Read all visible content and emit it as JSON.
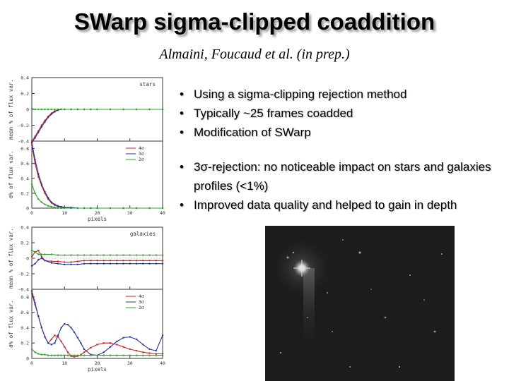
{
  "slide": {
    "title": "SWarp sigma-clipped coaddition",
    "subtitle": "Almaini, Foucaud et al. (in prep.)",
    "bullets_group1": [
      "Using a sigma-clipping rejection method",
      "Typically ~25 frames coadded",
      "Modification of SWarp"
    ],
    "bullets_group2": [
      "3σ-rejection: no noticeable impact on stars and galaxies profiles (<1%)",
      "Improved data quality and helped to gain in depth"
    ]
  },
  "plot_labels": {
    "stars": "stars",
    "galaxies": "galaxies",
    "ylabel_mean": "mean % of flux var.",
    "ylabel_sd": "σ% of flux var.",
    "xlabel": "pixels",
    "legend": [
      "4σ",
      "3σ",
      "2σ"
    ],
    "xticks": [
      "0",
      "10",
      "20",
      "30",
      "40"
    ],
    "yticks_mean": [
      "0.4",
      "0.2",
      "0",
      "-0.2",
      "-0.4"
    ],
    "yticks_sd": [
      "0.8",
      "0.6",
      "0.4",
      "0.2",
      "0"
    ]
  },
  "chart_data": [
    {
      "type": "line",
      "panel": "stars-mean",
      "label": "stars",
      "ylabel": "mean % of flux var.",
      "xlim": [
        0,
        40
      ],
      "ylim": [
        -0.4,
        0.4
      ],
      "x": [
        0,
        1,
        2,
        3,
        4,
        5,
        6,
        7,
        8,
        9,
        10,
        12,
        14,
        16,
        18,
        20,
        24,
        28,
        32,
        36,
        40
      ],
      "series": [
        {
          "name": "4σ",
          "color": "#cc2222",
          "values": [
            -0.4,
            -0.34,
            -0.27,
            -0.2,
            -0.14,
            -0.09,
            -0.05,
            -0.02,
            -0.01,
            0,
            0,
            0,
            0,
            0,
            0,
            0,
            0,
            0,
            0,
            0,
            0
          ]
        },
        {
          "name": "3σ",
          "color": "#2233aa",
          "values": [
            -0.42,
            -0.36,
            -0.29,
            -0.22,
            -0.16,
            -0.1,
            -0.06,
            -0.03,
            -0.01,
            0,
            0,
            0,
            0,
            0,
            0,
            0,
            0,
            0,
            0,
            0,
            0
          ]
        },
        {
          "name": "2σ",
          "color": "#22aa22",
          "values": [
            0.01,
            0,
            0,
            0,
            0,
            0,
            0,
            0,
            0,
            0,
            0,
            0,
            0,
            0,
            0,
            0,
            0,
            0,
            0,
            0,
            0
          ]
        }
      ]
    },
    {
      "type": "line",
      "panel": "stars-sd",
      "ylabel": "σ% of flux var.",
      "xlabel": "pixels",
      "xlim": [
        0,
        40
      ],
      "ylim": [
        0,
        0.9
      ],
      "x": [
        0,
        1,
        2,
        3,
        4,
        5,
        6,
        7,
        8,
        9,
        10,
        12,
        14,
        16,
        18,
        20,
        24,
        28,
        32,
        36,
        40
      ],
      "series": [
        {
          "name": "4σ",
          "color": "#cc2222",
          "values": [
            0.85,
            0.6,
            0.42,
            0.3,
            0.2,
            0.12,
            0.07,
            0.04,
            0.02,
            0.01,
            0.01,
            0,
            0,
            0,
            0,
            0,
            0,
            0,
            0,
            0,
            0
          ]
        },
        {
          "name": "3σ",
          "color": "#2233aa",
          "values": [
            0.88,
            0.65,
            0.46,
            0.32,
            0.22,
            0.14,
            0.08,
            0.05,
            0.03,
            0.02,
            0.01,
            0.01,
            0,
            0,
            0,
            0,
            0,
            0,
            0,
            0,
            0
          ]
        },
        {
          "name": "2σ",
          "color": "#22aa22",
          "values": [
            0.32,
            0.2,
            0.12,
            0.08,
            0.05,
            0.03,
            0.02,
            0.01,
            0,
            0,
            0,
            0,
            0,
            0,
            0,
            0,
            0,
            0,
            0,
            0,
            0
          ]
        }
      ]
    },
    {
      "type": "line",
      "panel": "galaxies-mean",
      "label": "galaxies",
      "ylabel": "mean % of flux var.",
      "xlim": [
        0,
        40
      ],
      "ylim": [
        -0.4,
        0.4
      ],
      "x": [
        0,
        1,
        2,
        3,
        4,
        6,
        8,
        10,
        12,
        14,
        16,
        18,
        20,
        22,
        24,
        26,
        28,
        30,
        32,
        34,
        36,
        38,
        40
      ],
      "series": [
        {
          "name": "4σ",
          "color": "#cc2222",
          "values": [
            0.02,
            0.08,
            0.1,
            0.02,
            -0.03,
            -0.04,
            -0.04,
            -0.05,
            -0.05,
            -0.04,
            -0.03,
            -0.03,
            -0.03,
            -0.03,
            -0.03,
            -0.03,
            -0.03,
            -0.03,
            -0.03,
            -0.03,
            -0.03,
            -0.03,
            -0.03
          ]
        },
        {
          "name": "3σ",
          "color": "#2233aa",
          "values": [
            -0.1,
            -0.07,
            -0.02,
            0,
            -0.03,
            -0.06,
            -0.07,
            -0.08,
            -0.08,
            -0.08,
            -0.07,
            -0.07,
            -0.07,
            -0.07,
            -0.07,
            -0.07,
            -0.07,
            -0.07,
            -0.07,
            -0.07,
            -0.07,
            -0.07,
            -0.07
          ]
        },
        {
          "name": "2σ",
          "color": "#22aa22",
          "values": [
            0.1,
            0.08,
            0.05,
            0.05,
            0.05,
            0.05,
            0.04,
            0.04,
            0.04,
            0.04,
            0.04,
            0.04,
            0.04,
            0.04,
            0.04,
            0.04,
            0.04,
            0.04,
            0.04,
            0.04,
            0.04,
            0.04,
            0.04
          ]
        }
      ]
    },
    {
      "type": "line",
      "panel": "galaxies-sd",
      "ylabel": "σ% of flux var.",
      "xlabel": "pixels",
      "xlim": [
        0,
        40
      ],
      "ylim": [
        0,
        0.9
      ],
      "x": [
        0,
        1,
        2,
        3,
        4,
        5,
        6,
        7,
        8,
        9,
        10,
        11,
        12,
        13,
        14,
        15,
        16,
        18,
        20,
        22,
        24,
        26,
        28,
        30,
        32,
        34,
        36,
        38,
        40
      ],
      "series": [
        {
          "name": "4σ",
          "color": "#cc2222",
          "values": [
            0.85,
            0.7,
            0.55,
            0.4,
            0.28,
            0.2,
            0.25,
            0.3,
            0.28,
            0.22,
            0.15,
            0.08,
            0.03,
            0.02,
            0.03,
            0.05,
            0.08,
            0.14,
            0.18,
            0.2,
            0.2,
            0.18,
            0.15,
            0.12,
            0.1,
            0.08,
            0.07,
            0.06,
            0.06
          ]
        },
        {
          "name": "3σ",
          "color": "#2233aa",
          "values": [
            0.88,
            0.72,
            0.55,
            0.4,
            0.28,
            0.2,
            0.18,
            0.2,
            0.3,
            0.4,
            0.45,
            0.44,
            0.4,
            0.34,
            0.27,
            0.2,
            0.12,
            0.05,
            0.04,
            0.08,
            0.15,
            0.22,
            0.27,
            0.28,
            0.25,
            0.18,
            0.12,
            0.1,
            0.3
          ]
        },
        {
          "name": "2σ",
          "color": "#22aa22",
          "values": [
            0.12,
            0.08,
            0.06,
            0.05,
            0.05,
            0.04,
            0.04,
            0.04,
            0.04,
            0.04,
            0.04,
            0.04,
            0.04,
            0.04,
            0.04,
            0.04,
            0.04,
            0.04,
            0.04,
            0.04,
            0.04,
            0.04,
            0.04,
            0.04,
            0.04,
            0.04,
            0.04,
            0.04,
            0.04
          ]
        }
      ]
    }
  ]
}
